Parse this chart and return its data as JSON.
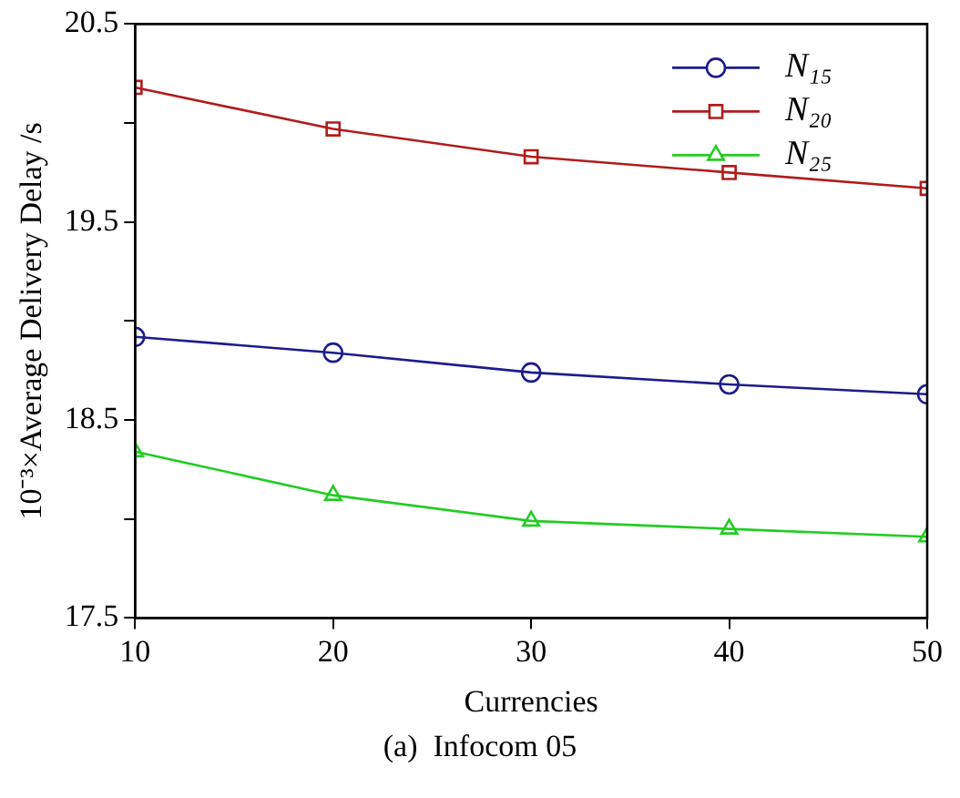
{
  "chart_data": {
    "type": "line",
    "xlabel": "Currencies",
    "ylabel": "10⁻³×Average Delivery Delay /s",
    "annotations": [
      "(a)  Infocom 05"
    ],
    "x": [
      10,
      20,
      30,
      40,
      50
    ],
    "xlim": [
      10,
      50
    ],
    "xticks": [
      10,
      20,
      30,
      40,
      50
    ],
    "ylim": [
      17.5,
      20.5
    ],
    "yticks": [
      17.5,
      {
        "value": 18,
        "label": null
      },
      18.5,
      {
        "value": 19,
        "label": null
      },
      19.5,
      {
        "value": 20,
        "label": null
      },
      20.5
    ],
    "grid": false,
    "legend": "top right",
    "line_style": "solid",
    "series": [
      {
        "name": "N₁₅",
        "color": "#1c1c8c",
        "marker": "circle",
        "values": [
          18.92,
          18.84,
          18.74,
          18.68,
          18.63
        ]
      },
      {
        "name": "N₂₀",
        "color": "#b01c1c",
        "marker": "square",
        "values": [
          20.18,
          19.97,
          19.83,
          19.75,
          19.67
        ]
      },
      {
        "name": "N₂₅",
        "color": "#22cc22",
        "marker": "triangle",
        "values": [
          18.34,
          18.12,
          17.99,
          17.95,
          17.91
        ]
      }
    ]
  }
}
